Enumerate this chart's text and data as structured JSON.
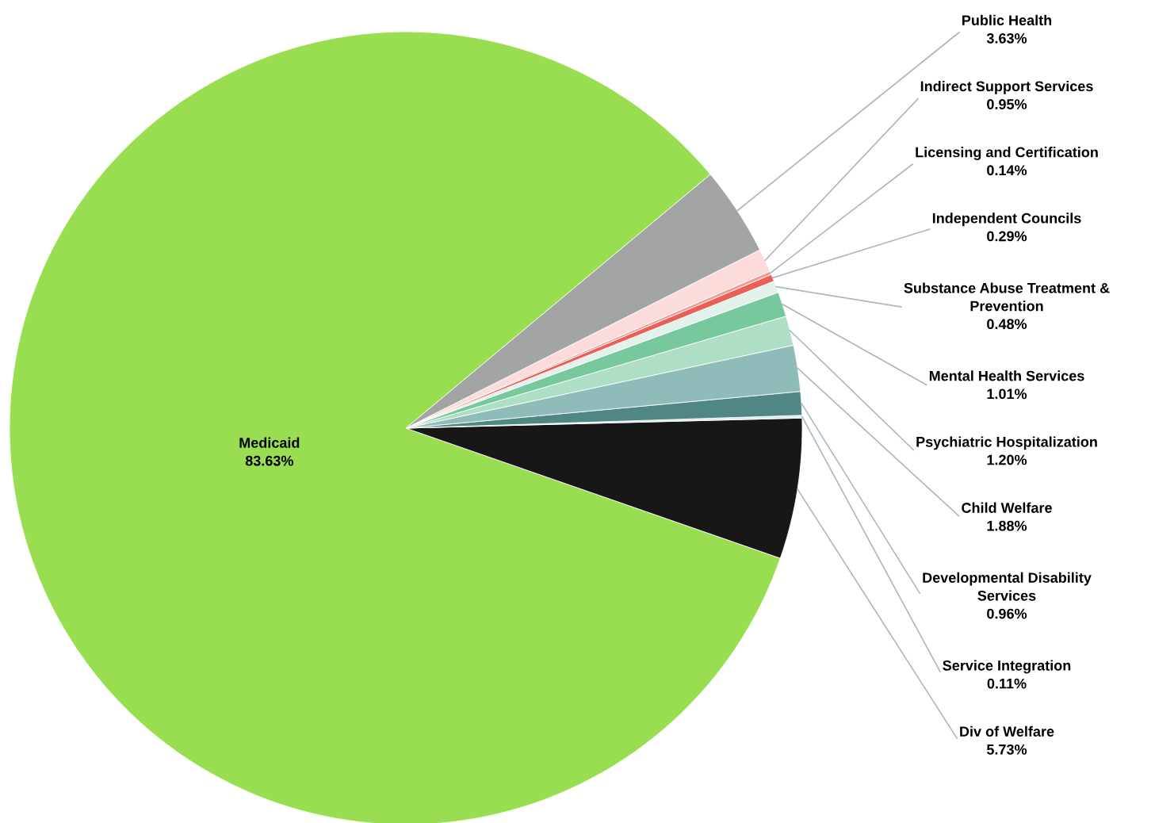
{
  "chart_data": {
    "type": "pie",
    "categories": [
      "Medicaid",
      "Div of Welfare",
      "Service Integration",
      "Developmental Disability Services",
      "Child Welfare",
      "Psychiatric Hospitalization",
      "Mental Health Services",
      "Substance Abuse Treatment & Prevention",
      "Independent Councils",
      "Licensing and Certification",
      "Indirect Support Services",
      "Public Health"
    ],
    "values": [
      83.63,
      5.73,
      0.11,
      0.96,
      1.88,
      1.2,
      1.01,
      0.48,
      0.29,
      0.14,
      0.95,
      3.63
    ],
    "value_labels": [
      "83.63%",
      "5.73%",
      "0.11%",
      "0.96%",
      "1.88%",
      "1.20%",
      "1.01%",
      "0.48%",
      "0.29%",
      "0.14%",
      "0.95%",
      "3.63%"
    ],
    "colors": [
      "#99dd50",
      "#171717",
      "#dcecea",
      "#508684",
      "#8fbbb9",
      "#afdec6",
      "#77c89d",
      "#e3f1ec",
      "#ec5f57",
      "#f09c97",
      "#fbdcdb",
      "#a2a5a3"
    ],
    "legend": false
  }
}
